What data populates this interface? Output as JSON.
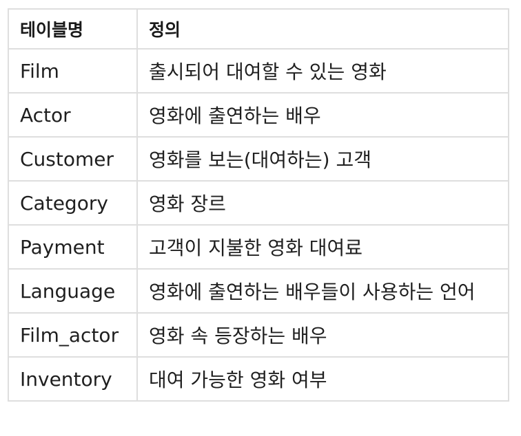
{
  "table": {
    "headers": [
      "테이블명",
      "정의"
    ],
    "rows": [
      [
        "Film",
        "출시되어 대여할 수 있는 영화"
      ],
      [
        "Actor",
        "영화에 출연하는 배우"
      ],
      [
        "Customer",
        "영화를 보는(대여하는) 고객"
      ],
      [
        "Category",
        "영화 장르"
      ],
      [
        "Payment",
        "고객이 지불한 영화 대여료"
      ],
      [
        "Language",
        "영화에 출연하는 배우들이 사용하는 언어"
      ],
      [
        "Film_actor",
        "영화 속 등장하는 배우"
      ],
      [
        "Inventory",
        "대여 가능한 영화 여부"
      ]
    ]
  }
}
